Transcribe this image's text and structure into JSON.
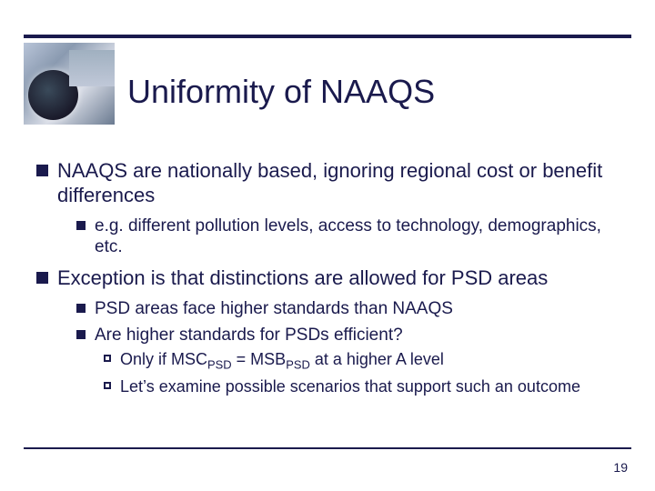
{
  "title": "Uniformity of NAAQS",
  "page_number": "19",
  "colors": {
    "text": "#1a1a4d",
    "rule": "#1a1a4d",
    "bullet_fill": "#1a1a4d",
    "background": "#ffffff"
  },
  "typography": {
    "title_fontsize_pt": 27,
    "lvl1_fontsize_pt": 17,
    "lvl2_fontsize_pt": 14,
    "lvl3_fontsize_pt": 13,
    "font_family": "Arial"
  },
  "bullets": [
    {
      "text": "NAAQS are nationally based, ignoring regional cost or benefit differences",
      "children": [
        {
          "text": "e.g. different pollution levels, access to technology, demographics, etc."
        }
      ]
    },
    {
      "text": "Exception is that distinctions are allowed for PSD areas",
      "children": [
        {
          "text": "PSD areas face higher standards than NAAQS"
        },
        {
          "text": "Are higher standards for PSDs efficient?",
          "children": [
            {
              "text_pre": "Only if MSC",
              "sub1": "PSD",
              "text_mid": " = MSB",
              "sub2": "PSD",
              "text_post": " at a higher A level"
            },
            {
              "text": "Let’s examine possible scenarios that support such an outcome"
            }
          ]
        }
      ]
    }
  ]
}
